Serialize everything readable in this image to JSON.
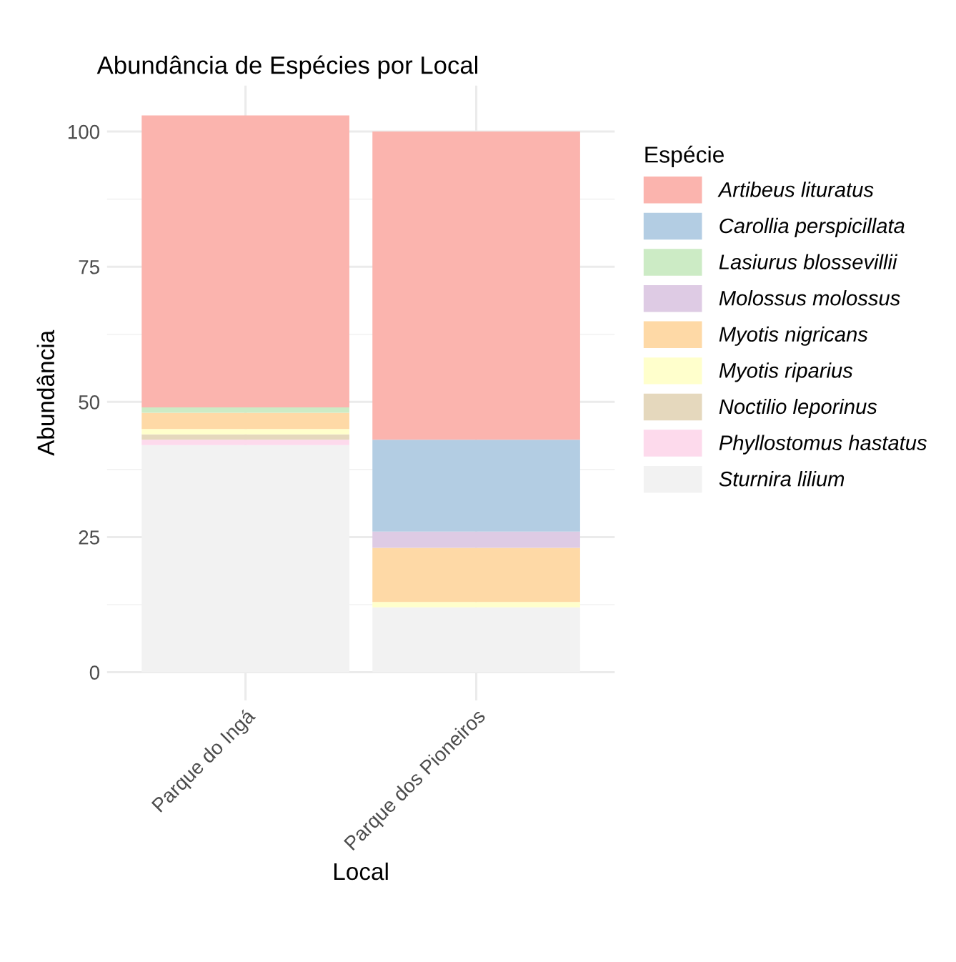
{
  "chart_data": {
    "type": "bar",
    "title": "Abundância de Espécies por Local",
    "xlabel": "Local",
    "ylabel": "Abundância",
    "legend_title": "Espécie",
    "categories": [
      "Parque do Ingá",
      "Parque dos Pioneiros"
    ],
    "stacked": true,
    "series": [
      {
        "name": "Sturnira lilium",
        "color": "#f2f2f2",
        "values": [
          42,
          12
        ]
      },
      {
        "name": "Phyllostomus hastatus",
        "color": "#fddaec",
        "values": [
          1,
          0
        ]
      },
      {
        "name": "Noctilio leporinus",
        "color": "#e5d8bd",
        "values": [
          1,
          0
        ]
      },
      {
        "name": "Myotis riparius",
        "color": "#ffffcc",
        "values": [
          1,
          1
        ]
      },
      {
        "name": "Myotis nigricans",
        "color": "#fed9a6",
        "values": [
          3,
          10
        ]
      },
      {
        "name": "Molossus molossus",
        "color": "#decbe4",
        "values": [
          0,
          3
        ]
      },
      {
        "name": "Lasiurus blossevillii",
        "color": "#ccebc5",
        "values": [
          1,
          0
        ]
      },
      {
        "name": "Carollia perspicillata",
        "color": "#b3cde3",
        "values": [
          0,
          17
        ]
      },
      {
        "name": "Artibeus lituratus",
        "color": "#fbb4ae",
        "values": [
          54,
          57
        ]
      }
    ],
    "ylim": [
      -5.2,
      108.5
    ],
    "yticks": [
      0,
      25,
      50,
      75,
      100
    ],
    "grid": true,
    "legend": "right"
  }
}
